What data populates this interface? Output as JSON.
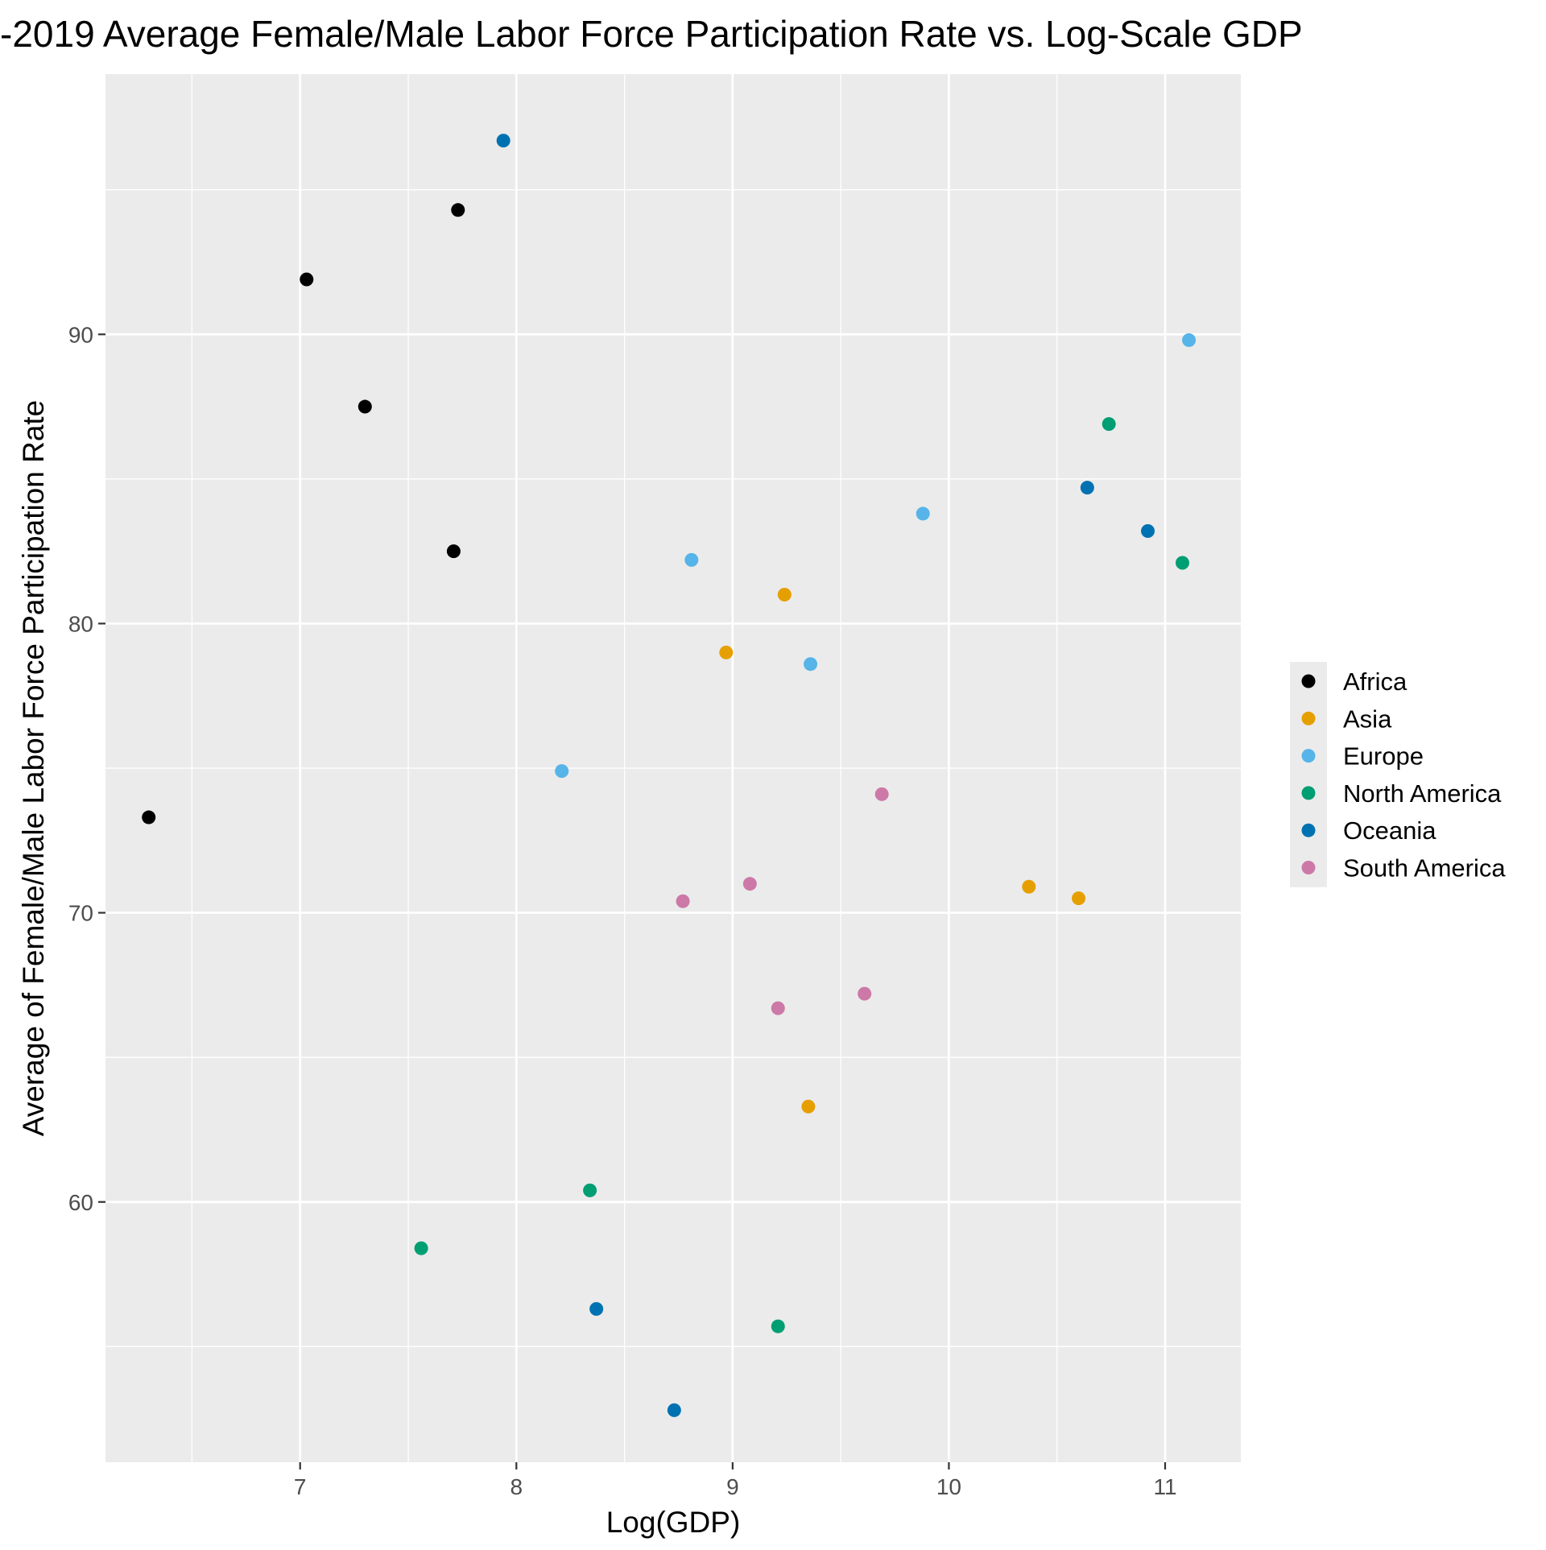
{
  "chart_data": {
    "type": "scatter",
    "title": "-2019 Average Female/Male Labor Force Participation Rate vs. Log-Scale GDP",
    "xlabel": "Log(GDP)",
    "ylabel": "Average of Female/Male Labor Force Participation Rate",
    "xlim": [
      6.1,
      11.35
    ],
    "ylim": [
      51.0,
      99.0
    ],
    "x_ticks": [
      7,
      8,
      9,
      10,
      11
    ],
    "x_tick_labels": [
      "7",
      "8",
      "9",
      "10",
      "11"
    ],
    "y_ticks": [
      60,
      70,
      80,
      90
    ],
    "y_tick_labels": [
      "60",
      "70",
      "80",
      "90"
    ],
    "grid": true,
    "legend_position": "right",
    "series": [
      {
        "name": "Africa",
        "color": "#000000",
        "points": [
          {
            "x": 6.3,
            "y": 73.3
          },
          {
            "x": 7.03,
            "y": 91.9
          },
          {
            "x": 7.3,
            "y": 87.5
          },
          {
            "x": 7.71,
            "y": 82.5
          },
          {
            "x": 7.73,
            "y": 94.3
          }
        ]
      },
      {
        "name": "Asia",
        "color": "#E69F00",
        "points": [
          {
            "x": 8.97,
            "y": 79.0
          },
          {
            "x": 9.24,
            "y": 81.0
          },
          {
            "x": 9.35,
            "y": 63.3
          },
          {
            "x": 10.37,
            "y": 70.9
          },
          {
            "x": 10.6,
            "y": 70.5
          }
        ]
      },
      {
        "name": "Europe",
        "color": "#56B4E9",
        "points": [
          {
            "x": 8.21,
            "y": 74.9
          },
          {
            "x": 8.81,
            "y": 82.2
          },
          {
            "x": 9.36,
            "y": 78.6
          },
          {
            "x": 9.88,
            "y": 83.8
          },
          {
            "x": 11.11,
            "y": 89.8
          }
        ]
      },
      {
        "name": "North America",
        "color": "#009E73",
        "points": [
          {
            "x": 7.56,
            "y": 58.4
          },
          {
            "x": 8.34,
            "y": 60.4
          },
          {
            "x": 9.21,
            "y": 55.7
          },
          {
            "x": 10.74,
            "y": 86.9
          },
          {
            "x": 11.08,
            "y": 82.1
          }
        ]
      },
      {
        "name": "Oceania",
        "color": "#0072B2",
        "points": [
          {
            "x": 7.94,
            "y": 96.7
          },
          {
            "x": 8.37,
            "y": 56.3
          },
          {
            "x": 8.73,
            "y": 52.8
          },
          {
            "x": 10.64,
            "y": 84.7
          },
          {
            "x": 10.92,
            "y": 83.2
          }
        ]
      },
      {
        "name": "South America",
        "color": "#CC79A7",
        "points": [
          {
            "x": 8.77,
            "y": 70.4
          },
          {
            "x": 9.08,
            "y": 71.0
          },
          {
            "x": 9.21,
            "y": 66.7
          },
          {
            "x": 9.61,
            "y": 67.2
          },
          {
            "x": 9.69,
            "y": 74.1
          }
        ]
      }
    ]
  }
}
